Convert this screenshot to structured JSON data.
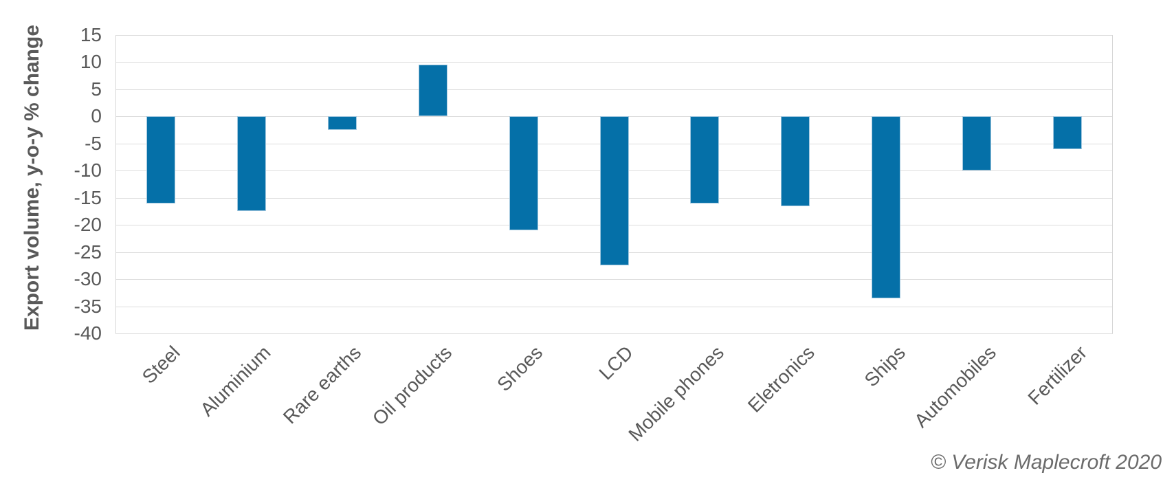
{
  "chart_data": {
    "type": "bar",
    "categories": [
      "Steel",
      "Aluminium",
      "Rare earths",
      "Oil products",
      "Shoes",
      "LCD",
      "Mobile phones",
      "Eletronics",
      "Ships",
      "Automobiles",
      "Fertilizer"
    ],
    "values": [
      -16,
      -17.5,
      -2.5,
      9.5,
      -21,
      -27.5,
      -16,
      -16.5,
      -33.5,
      -10,
      -6
    ],
    "title": "",
    "xlabel": "",
    "ylabel": "Export volume, y-o-y % change",
    "ylim": [
      -40,
      15
    ],
    "yticks": [
      15,
      10,
      5,
      0,
      -5,
      -10,
      -15,
      -20,
      -25,
      -30,
      -35,
      -40
    ],
    "grid": "horizontal-only",
    "legend_position": "none",
    "colors": {
      "bar_fill": "#0570A8",
      "bar_edge": "#A3C8DF",
      "gridline": "#DDDDDD",
      "axis_text": "#595959",
      "footer_text": "#6B6B6B"
    }
  },
  "footer": {
    "credit": "© Verisk Maplecroft 2020"
  }
}
